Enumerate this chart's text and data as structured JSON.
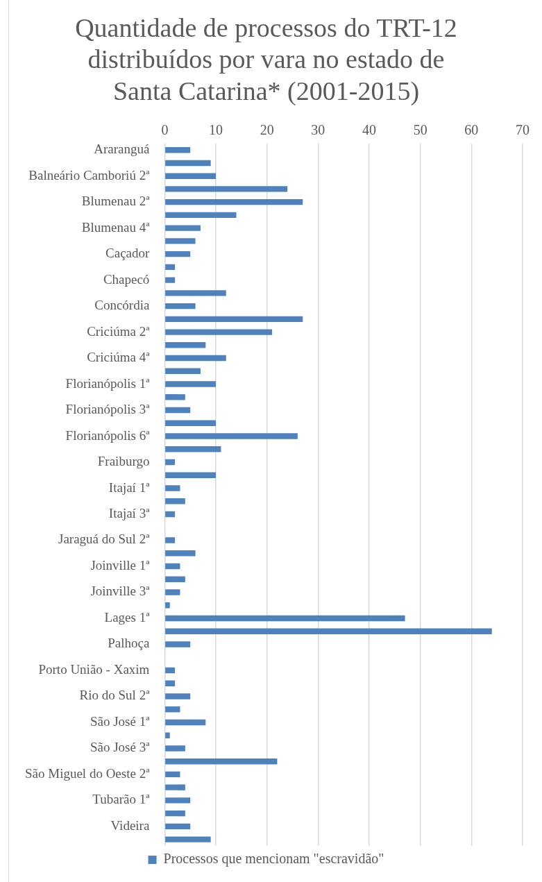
{
  "chart_data": {
    "type": "bar",
    "orientation": "horizontal",
    "title": "Quantidade de processos do TRT-12 distribuídos por vara no estado de Santa Catarina* (2001-2015)",
    "categories": [
      "Araranguá",
      null,
      "Balneário Camboriú 2ª",
      null,
      "Blumenau 2ª",
      null,
      "Blumenau 4ª",
      null,
      "Caçador",
      null,
      "Chapecó",
      null,
      "Concórdia",
      null,
      "Criciúma 2ª",
      null,
      "Criciúma 4ª",
      null,
      "Florianópolis 1ª",
      null,
      "Florianópolis 3ª",
      null,
      "Florianópolis 6ª",
      null,
      "Fraiburgo",
      null,
      "Itajaí 1ª",
      null,
      "Itajaí 3ª",
      null,
      "Jaraguá do Sul 2ª",
      null,
      "Joinville 1ª",
      null,
      "Joinville 3ª",
      null,
      "Lages 1ª",
      null,
      "Palhoça",
      null,
      "Porto União - Xaxim",
      null,
      "Rio do Sul 2ª",
      null,
      "São José 1ª",
      null,
      "São José 3ª",
      null,
      "São Miguel do Oeste 2ª",
      null,
      "Tubarão 1ª",
      null,
      "Videira",
      null
    ],
    "series": [
      {
        "name": "Processos que mencionam \"escravidão\"",
        "color": "#4f81bd",
        "values": [
          5,
          9,
          10,
          24,
          27,
          14,
          7,
          6,
          5,
          2,
          2,
          12,
          6,
          27,
          21,
          8,
          12,
          7,
          10,
          4,
          5,
          10,
          26,
          11,
          2,
          10,
          3,
          4,
          2,
          0,
          2,
          6,
          3,
          4,
          3,
          1,
          47,
          64,
          5,
          0,
          2,
          2,
          5,
          3,
          8,
          1,
          4,
          22,
          3,
          4,
          5,
          4,
          5,
          9
        ]
      }
    ],
    "xlim": [
      0,
      70
    ],
    "xticks": [
      0,
      10,
      20,
      30,
      40,
      50,
      60,
      70
    ],
    "grid": "x",
    "legend": "bottom"
  }
}
